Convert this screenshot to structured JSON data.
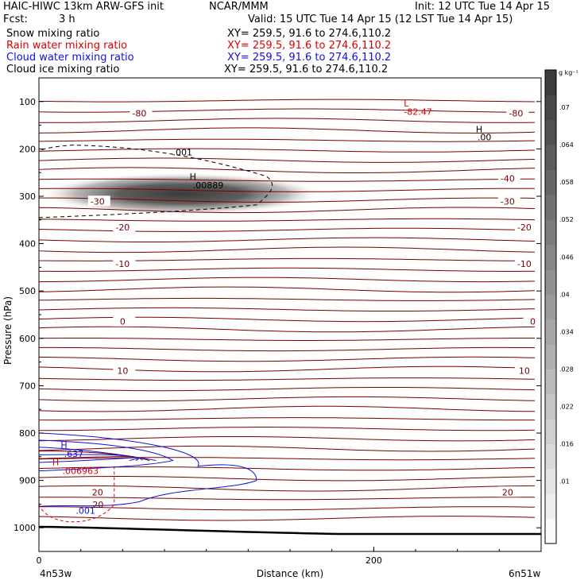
{
  "header": {
    "model": "HAIC-HIWC 13km ARW-GFS init",
    "org": "NCAR/MMM",
    "init": "Init: 12 UTC Tue 14 Apr 15",
    "fcst_label": "Fcst:",
    "fcst_value": "3 h",
    "valid": "Valid: 15 UTC Tue 14 Apr 15 (12 LST Tue 14 Apr 15)"
  },
  "fields": [
    {
      "name": "Snow mixing ratio",
      "xy": "XY= 259.5, 91.6 to 274.6,110.2",
      "color": "#000000"
    },
    {
      "name": "Rain water mixing ratio",
      "xy": "XY= 259.5, 91.6 to 274.6,110.2",
      "color": "#e00000"
    },
    {
      "name": "Cloud water mixing ratio",
      "xy": "XY= 259.5, 91.6 to 274.6,110.2",
      "color": "#1010e0"
    },
    {
      "name": "Cloud ice mixing ratio",
      "xy": "XY= 259.5, 91.6 to 274.6,110.2",
      "color": "#000000"
    }
  ],
  "chart_data": {
    "type": "heatmap",
    "title": "",
    "xlabel": "Distance (km)",
    "ylabel": "Pressure (hPa)",
    "xlim": [
      0,
      300
    ],
    "ylim": [
      1050,
      50
    ],
    "x_ticks": [
      "0",
      "200"
    ],
    "y_ticks": [
      "100",
      "200",
      "300",
      "400",
      "500",
      "600",
      "700",
      "800",
      "900",
      "1000"
    ],
    "x_endpoints": {
      "left": "4n53w",
      "right": "6n51w"
    },
    "colorbar": {
      "unit": "g kg⁻¹",
      "levels": [
        ".01",
        ".016",
        ".022",
        ".028",
        ".034",
        ".04",
        ".046",
        ".052",
        ".058",
        ".064",
        ".07"
      ],
      "max": 0.076
    },
    "shaded_blob": {
      "x_center": 85,
      "p_center": 295,
      "x_halfwidth": 85,
      "p_halfwidth": 45,
      "max": 0.0089
    },
    "isotherms": [
      {
        "value": -80,
        "p": 125
      },
      {
        "value": -80,
        "p": 125
      },
      {
        "value": -40,
        "p": 262
      },
      {
        "value": -30,
        "p": 310
      },
      {
        "value": -20,
        "p": 367
      },
      {
        "value": -10,
        "p": 440
      },
      {
        "value": 0,
        "p": 565
      },
      {
        "value": 10,
        "p": 670
      },
      {
        "value": 20,
        "p": 925
      }
    ],
    "isotherm_labels": [
      "-80",
      "-80",
      "-40",
      "-30",
      "-30",
      "-20",
      "-20",
      "-10",
      "-10",
      "0",
      "0",
      "10",
      "10",
      "20",
      "20"
    ],
    "annotations": [
      {
        "text": "L",
        "x": 218,
        "p": 110
      },
      {
        "text": "-82.47",
        "x": 218,
        "p": 128
      },
      {
        "text": "H",
        "x": 261,
        "p": 165
      },
      {
        "text": ".00",
        "x": 262,
        "p": 182
      },
      {
        "text": "H",
        "x": 90,
        "p": 265
      },
      {
        "text": ".00889",
        "x": 92,
        "p": 283
      },
      {
        "text": ".001",
        "x": 80,
        "p": 214
      },
      {
        "text": "H",
        "x": 13,
        "p": 832
      },
      {
        "text": ".637",
        "x": 15,
        "p": 850
      },
      {
        "text": "H",
        "x": 8,
        "p": 868
      },
      {
        "text": ".006963",
        "x": 14,
        "p": 886
      },
      {
        "text": ".001",
        "x": 22,
        "p": 970
      },
      {
        "text": "20",
        "x": 32,
        "p": 958
      }
    ]
  },
  "colors": {
    "isotherm": "#7a0000",
    "rain": "#e00000",
    "cloud_water": "#1010e0",
    "ice": "#000000",
    "shade_max": "#3a3a3a"
  }
}
